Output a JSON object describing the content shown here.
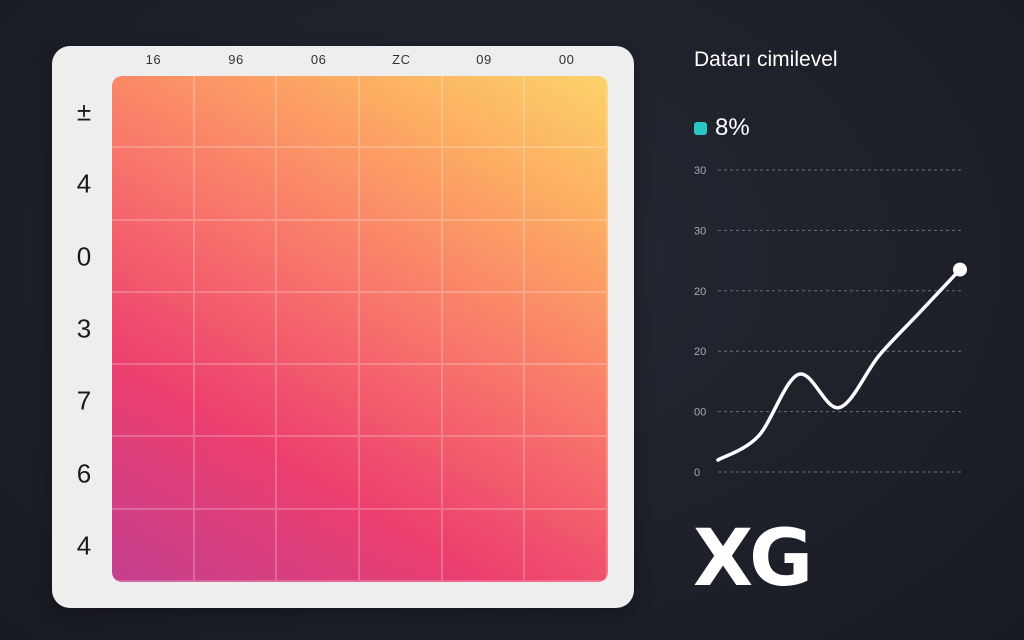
{
  "chart_data": [
    {
      "type": "heatmap",
      "column_labels": [
        "16",
        "96",
        "06",
        "ZC",
        "09",
        "00"
      ],
      "row_labels": [
        "±",
        "4",
        "0",
        "3",
        "7",
        "6",
        "4"
      ],
      "color_scale": [
        "#c43f8f",
        "#ec3f6e",
        "#f8766b",
        "#fdab62",
        "#fcd36a"
      ]
    },
    {
      "type": "line",
      "title": "Datarı cimilevel",
      "legend": [
        {
          "label": "8%",
          "color": "#28c6c6"
        }
      ],
      "y_tick_labels": [
        "30",
        "30",
        "20",
        "20",
        "00",
        "0"
      ],
      "series": [
        {
          "values": [
            0,
            0.25,
            0.9,
            0.55,
            1.1,
            1.55,
            2.0
          ],
          "color": "#ffffff"
        }
      ],
      "ylim": [
        0,
        2.5
      ]
    }
  ],
  "brand": {
    "logo_text": "XG"
  }
}
